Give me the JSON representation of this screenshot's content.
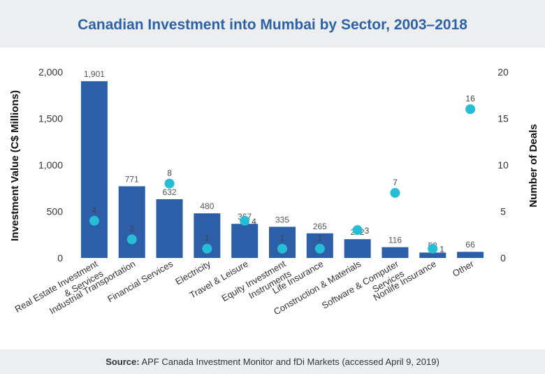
{
  "title": "Canadian Investment into Mumbai by Sector, 2003–2018",
  "source": {
    "prefix": "Source:",
    "text": "APF Canada Investment Monitor and fDi Markets (accessed April 9, 2019)"
  },
  "colors": {
    "bar": "#2d5ea8",
    "dot": "#26bdd6",
    "title": "#2e62a7",
    "band": "#eceeef"
  },
  "chart_data": {
    "type": "bar",
    "title": "Canadian Investment into Mumbai by Sector, 2003–2018",
    "categories": [
      [
        "Real Estate Investment",
        "& Services"
      ],
      [
        "Industrial Transportation"
      ],
      [
        "Financial Services"
      ],
      [
        "Electricity"
      ],
      [
        "Travel & Leisure"
      ],
      [
        "Equity Investment",
        "Instruments"
      ],
      [
        "Life Insurance"
      ],
      [
        "Construction & Materials"
      ],
      [
        "Software & Computer",
        "Services"
      ],
      [
        "Nonlife Insurance"
      ],
      [
        "Other"
      ]
    ],
    "series": [
      {
        "type": "bar",
        "axis": "left",
        "values": [
          1901,
          771,
          632,
          480,
          367,
          335,
          265,
          202,
          116,
          58,
          66
        ],
        "labels": [
          "1,901",
          "771",
          "632",
          "480",
          "367",
          "335",
          "265",
          "202",
          "116",
          "58",
          "66"
        ]
      },
      {
        "type": "scatter",
        "axis": "right",
        "values": [
          4,
          2,
          8,
          1,
          4,
          1,
          1,
          3,
          7,
          1,
          16
        ]
      }
    ],
    "ylabel": "Investment Value (C$ Millions)",
    "y2label": "Number of Deals",
    "ylim": [
      0,
      2000
    ],
    "y2lim": [
      0,
      20
    ],
    "yticks": [
      "0",
      "500",
      "1,000",
      "1,500",
      "2,000"
    ],
    "y2ticks": [
      "0",
      "5",
      "10",
      "15",
      "20"
    ],
    "grid": false,
    "legend": "none"
  }
}
